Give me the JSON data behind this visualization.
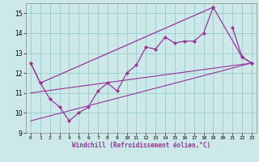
{
  "background_color": "#cce8e8",
  "line_color": "#993399",
  "grid_color": "#99cccc",
  "xlabel": "Windchill (Refroidissement éolien,°C)",
  "xlim": [
    -0.5,
    23.5
  ],
  "ylim": [
    9,
    15.5
  ],
  "yticks": [
    9,
    10,
    11,
    12,
    13,
    14,
    15
  ],
  "xticks": [
    0,
    1,
    2,
    3,
    4,
    5,
    6,
    7,
    8,
    9,
    10,
    11,
    12,
    13,
    14,
    15,
    16,
    17,
    18,
    19,
    20,
    21,
    22,
    23
  ],
  "hours": [
    0,
    1,
    2,
    3,
    4,
    5,
    6,
    7,
    8,
    9,
    10,
    11,
    12,
    13,
    14,
    15,
    16,
    17,
    18,
    19,
    20,
    21,
    22,
    23
  ],
  "series_main": [
    12.5,
    11.5,
    10.7,
    10.3,
    9.6,
    10.0,
    10.3,
    11.1,
    11.5,
    11.1,
    12.0,
    12.4,
    13.3,
    13.2,
    13.8,
    13.5,
    13.6,
    13.6,
    14.0,
    15.3,
    null,
    14.3,
    12.8,
    12.5
  ],
  "series_upper_x": [
    0,
    1,
    19,
    22,
    23
  ],
  "series_upper_y": [
    12.5,
    11.5,
    15.3,
    12.8,
    12.5
  ],
  "trend1_x": [
    0,
    23
  ],
  "trend1_y": [
    9.6,
    12.5
  ],
  "trend2_x": [
    0,
    23
  ],
  "trend2_y": [
    11.0,
    12.5
  ]
}
